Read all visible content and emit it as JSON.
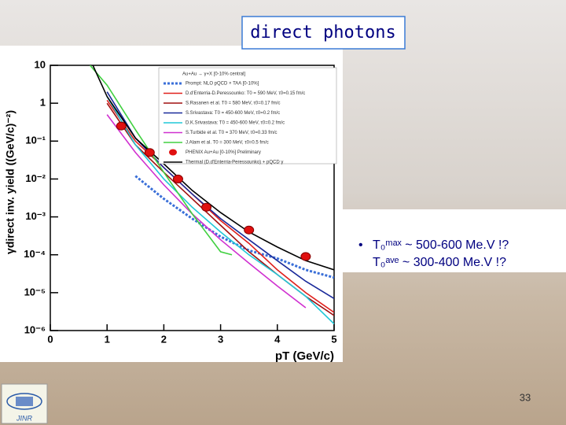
{
  "title": "direct photons",
  "bullet": [
    "T₀ᵐᵃˣ ~ 500-600 Me.V !?",
    "T₀ᵃᵛᵉ ~ 300-400 Me.V !?"
  ],
  "logo": "JINR",
  "page_number": "33",
  "chart_data": {
    "type": "line",
    "x_label": "pT (GeV/c)",
    "y_label": "γdirect inv. yield ((GeV/c)⁻²)",
    "log_y": true,
    "xlim": [
      0,
      5
    ],
    "xticks": [
      0,
      1,
      2,
      3,
      4,
      5
    ],
    "ylim": [
      1e-06,
      10
    ],
    "yticks": [
      {
        "value": 10,
        "label": "10"
      },
      {
        "value": 1,
        "label": "1"
      },
      {
        "value": 0.1,
        "label": "10⁻¹"
      },
      {
        "value": 0.01,
        "label": "10⁻²"
      },
      {
        "value": 0.001,
        "label": "10⁻³"
      },
      {
        "value": 0.0001,
        "label": "10⁻⁴"
      },
      {
        "value": 1e-05,
        "label": "10⁻⁵"
      },
      {
        "value": 1e-06,
        "label": "10⁻⁶"
      }
    ],
    "legend_title": "Au+Au → γ+X [0-10% central]",
    "series": [
      {
        "name": "Prompt: NLO pQCD × TAA [0-10%]",
        "color": "#3a6fd8",
        "style": "dotted",
        "x": [
          1.5,
          2,
          2.5,
          3,
          3.5,
          4,
          4.5,
          5
        ],
        "values": [
          0.012,
          0.003,
          0.0009,
          0.0003,
          0.00013,
          8e-05,
          4e-05,
          2.5e-05
        ]
      },
      {
        "name": "D.d'Enterria-D.Peressounko: T0 = 590 MeV, τ0=0.15 fm/c",
        "color": "#e0201c",
        "style": "solid",
        "x": [
          1,
          1.5,
          2,
          2.5,
          3,
          3.5,
          4,
          4.5,
          5
        ],
        "values": [
          1.2,
          0.1,
          0.02,
          0.004,
          0.0008,
          0.0002,
          4e-05,
          1e-05,
          3e-06
        ]
      },
      {
        "name": "S.Rasanen et al. T0 = 580 MeV, τ0=0.17 fm/c",
        "color": "#a01010",
        "style": "solid",
        "x": [
          1,
          1.5,
          2,
          2.5,
          3,
          3.5,
          4,
          4.5,
          5
        ],
        "values": [
          1.0,
          0.08,
          0.015,
          0.003,
          0.0006,
          0.00012,
          3e-05,
          8e-06,
          2.5e-06
        ]
      },
      {
        "name": "S.Srivastava: T0 = 450-600 MeV, τ0=0.2 fm/c",
        "color": "#1a2a9a",
        "style": "solid",
        "x": [
          1,
          1.5,
          2,
          2.5,
          3,
          3.5,
          4,
          4.5,
          5
        ],
        "values": [
          2,
          0.12,
          0.02,
          0.004,
          0.0009,
          0.00025,
          7e-05,
          2e-05,
          7e-06
        ]
      },
      {
        "name": "D.K.Srivastava: T0 = 450-600 MeV, τ0=0.2 fm/c",
        "color": "#20c8d8",
        "style": "solid",
        "x": [
          1,
          1.5,
          2,
          2.5,
          3,
          3.5,
          4,
          4.5,
          5
        ],
        "values": [
          1.5,
          0.08,
          0.01,
          0.0018,
          0.0004,
          0.0001,
          3e-05,
          8e-06,
          1.5e-06
        ]
      },
      {
        "name": "S.Turbide et al. T0 = 370 MeV, τ0=0.33 fm/c",
        "color": "#d030d0",
        "style": "solid",
        "x": [
          1,
          1.5,
          2,
          2.5,
          3,
          3.5,
          4,
          4.5
        ],
        "values": [
          0.5,
          0.05,
          0.007,
          0.0012,
          0.00025,
          6e-05,
          1.5e-05,
          4e-06
        ]
      },
      {
        "name": "J.Alam et al. T0 = 300 MeV, τ0=0.5 fm/c",
        "color": "#40d040",
        "style": "solid",
        "x": [
          0.7,
          1,
          1.5,
          2,
          2.5,
          3,
          3.2
        ],
        "values": [
          10,
          3,
          0.2,
          0.015,
          0.0012,
          0.00012,
          0.0001
        ]
      },
      {
        "name": "PHENIX Au+Au [0-10%] Preliminary",
        "color": "#e01010",
        "style": "points",
        "x": [
          1.25,
          1.75,
          2.25,
          2.75,
          3.5,
          4.5
        ],
        "values": [
          0.25,
          0.05,
          0.01,
          0.0018,
          0.00045,
          9e-05
        ]
      },
      {
        "name": "Thermal (D.d'Enterria-Peressounko) + pQCD γ",
        "color": "#000000",
        "style": "solid",
        "x": [
          0.75,
          1,
          1.5,
          2,
          2.5,
          3,
          3.5,
          4,
          4.5,
          5
        ],
        "values": [
          10,
          1.5,
          0.12,
          0.025,
          0.005,
          0.0013,
          0.0004,
          0.00016,
          7e-05,
          4e-05
        ]
      }
    ]
  }
}
